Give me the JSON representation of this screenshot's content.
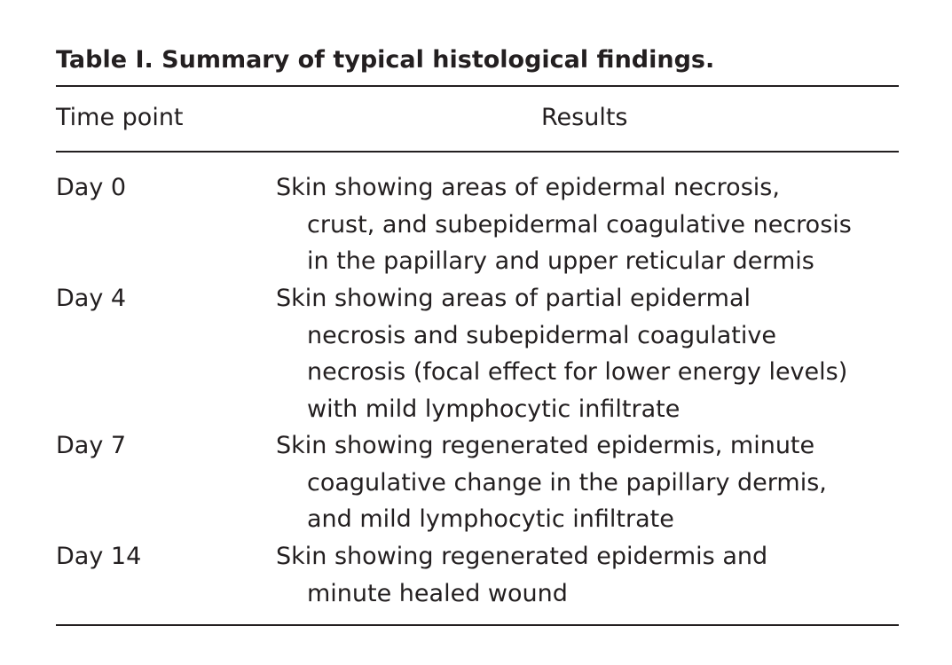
{
  "title": "Table I. Summary of typical histological findings.",
  "headers": {
    "time": "Time point",
    "results": "Results"
  },
  "rows": [
    {
      "time": "Day 0",
      "lines": [
        "Skin showing areas of epidermal necrosis,",
        "crust, and subepidermal coagulative necrosis",
        "in the papillary and upper reticular dermis"
      ]
    },
    {
      "time": "Day 4",
      "lines": [
        "Skin showing areas of partial epidermal",
        "necrosis and subepidermal coagulative",
        "necrosis (focal effect for lower energy levels)",
        "with mild lymphocytic infiltrate"
      ]
    },
    {
      "time": "Day 7",
      "lines": [
        "Skin showing regenerated epidermis, minute",
        "coagulative change in the papillary dermis,",
        "and mild lymphocytic infiltrate"
      ]
    },
    {
      "time": "Day 14",
      "lines": [
        "Skin showing regenerated epidermis and",
        "minute healed wound"
      ]
    }
  ]
}
